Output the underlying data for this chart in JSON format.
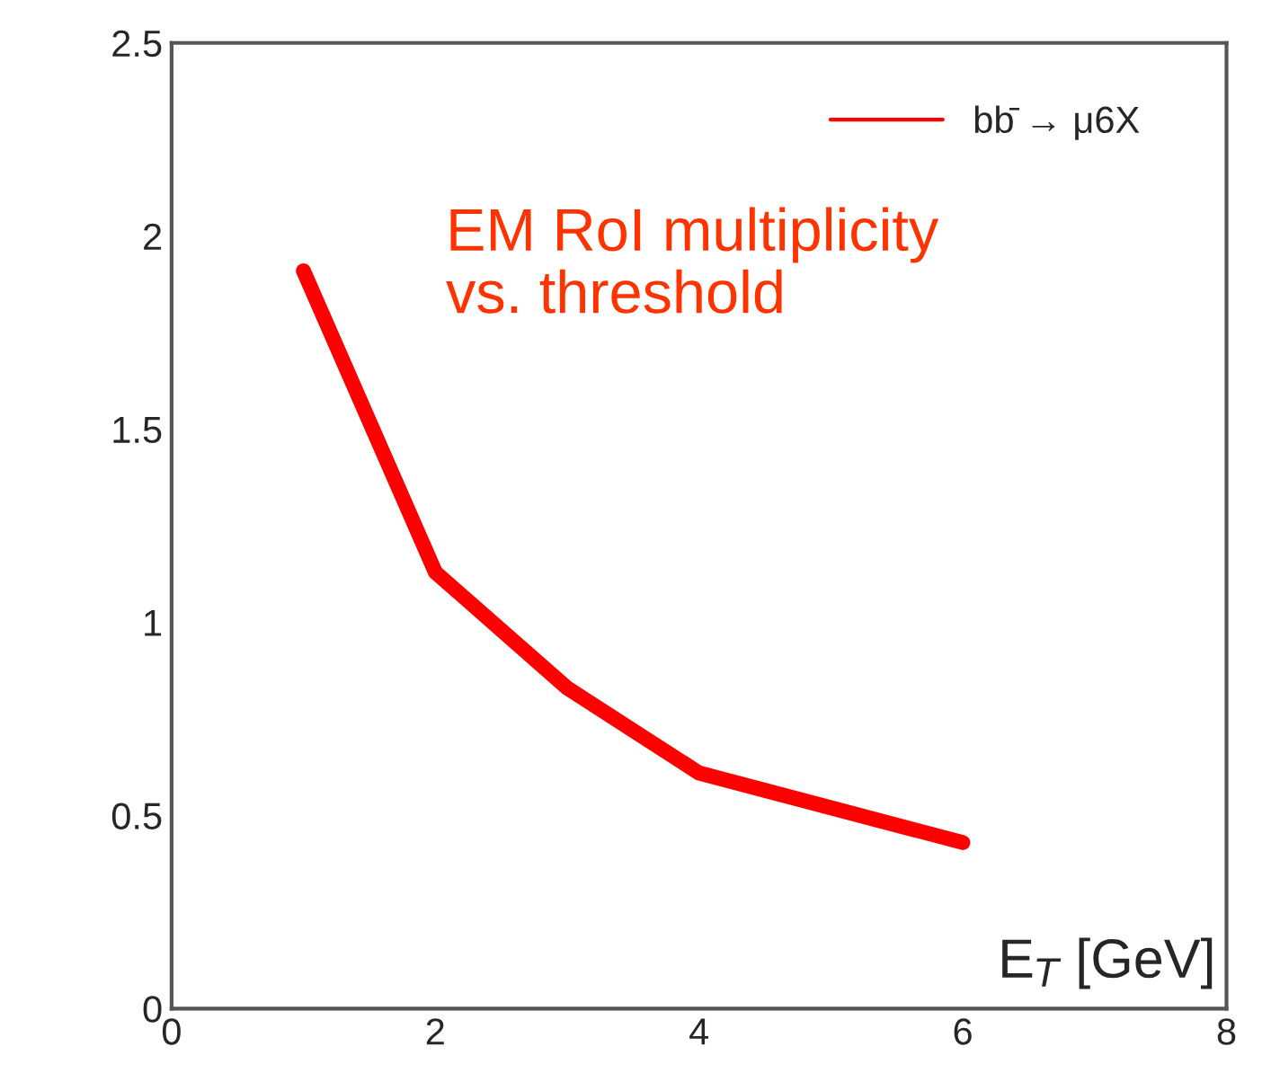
{
  "chart_data": {
    "type": "line",
    "xlabel": "E$_{T}$ [GeV]",
    "x": [
      1,
      2,
      3,
      4,
      5,
      6
    ],
    "series": [
      {
        "name": "bb̄ → μ6X",
        "color": "#ff0000",
        "values": [
          1.91,
          1.13,
          0.83,
          0.61,
          0.52,
          0.43
        ]
      }
    ],
    "xlim": [
      0,
      8
    ],
    "xticks": [
      0,
      2,
      4,
      6,
      8
    ],
    "ylim": [
      0,
      2.5
    ],
    "yticks": [
      0,
      0.5,
      1,
      1.5,
      2,
      2.5
    ],
    "annotations": [
      "EM RoI multiplicity\nvs. threshold"
    ],
    "grid": false,
    "legend": "top right",
    "marker": "none",
    "line_style": "solid"
  }
}
